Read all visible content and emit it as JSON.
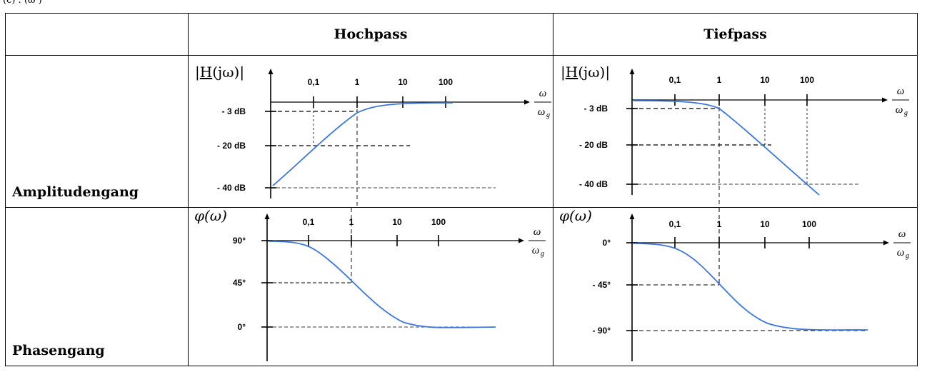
{
  "top_text": "(c)                                                     .  (ω )",
  "header": {
    "corner": "",
    "col1": "Hochpass",
    "col2": "Tiefpass"
  },
  "rows": {
    "amplitude": "Amplitudengang",
    "phase": "Phasengang"
  },
  "axis": {
    "ticks": [
      "0,1",
      "1",
      "10",
      "100"
    ],
    "x_num": "ω",
    "x_den": "ω",
    "x_den_sub": "g",
    "amp_ylabel": {
      "H": "H",
      "jw": "(jω)",
      "bar": "|"
    },
    "phase_ylabel": "φ(ω)"
  },
  "amp_levels": [
    "- 3 dB",
    "- 20 dB",
    "- 40 dB"
  ],
  "phase_levels_hp": [
    "90°",
    "45°",
    "0°"
  ],
  "phase_levels_tp": [
    "0°",
    "- 45°",
    "- 90°"
  ],
  "curve_color": "#3a76e6"
}
